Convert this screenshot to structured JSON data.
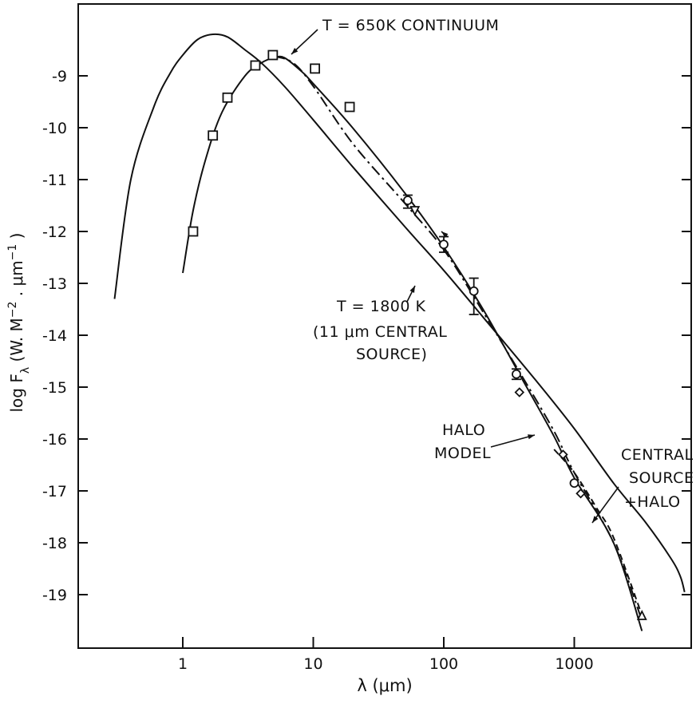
{
  "chart_data": {
    "type": "line",
    "xlabel": "λ (μm)",
    "ylabel": "log  F_λ (W. M⁻² . μm⁻¹ )",
    "xscale": "log",
    "xlim": [
      0.2,
      8000
    ],
    "ylim": [
      -20.0,
      -8.0
    ],
    "x_ticks": [
      1,
      10,
      100,
      1000
    ],
    "x_tick_labels": [
      "1",
      "10",
      "100",
      "1000"
    ],
    "y_ticks": [
      -9,
      -10,
      -11,
      -12,
      -13,
      -14,
      -15,
      -16,
      -17,
      -18,
      -19
    ],
    "y_tick_labels": [
      "-9",
      "-10",
      "-11",
      "-12",
      "-13",
      "-14",
      "-15",
      "-16",
      "-17",
      "-18",
      "-19"
    ],
    "grid": false,
    "series": [
      {
        "style": "solid",
        "points": [
          [
            0.3,
            -13.3
          ],
          [
            0.4,
            -11.0
          ],
          [
            0.6,
            -9.6
          ],
          [
            0.8,
            -8.95
          ],
          [
            1.0,
            -8.6
          ],
          [
            1.3,
            -8.3
          ],
          [
            1.7,
            -8.2
          ],
          [
            2.2,
            -8.25
          ],
          [
            3,
            -8.5
          ],
          [
            4,
            -8.75
          ],
          [
            6,
            -9.2
          ],
          [
            10,
            -9.85
          ],
          [
            20,
            -10.75
          ],
          [
            50,
            -11.9
          ],
          [
            100,
            -12.75
          ],
          [
            200,
            -13.65
          ],
          [
            500,
            -14.85
          ],
          [
            1000,
            -15.8
          ],
          [
            2000,
            -16.85
          ],
          [
            3500,
            -17.6
          ],
          [
            5500,
            -18.3
          ],
          [
            6500,
            -18.65
          ],
          [
            7000,
            -18.95
          ]
        ]
      },
      {
        "style": "solid",
        "points": [
          [
            1.0,
            -12.8
          ],
          [
            1.2,
            -11.6
          ],
          [
            1.5,
            -10.6
          ],
          [
            2,
            -9.7
          ],
          [
            3,
            -9.0
          ],
          [
            4,
            -8.75
          ],
          [
            5,
            -8.65
          ],
          [
            6,
            -8.65
          ],
          [
            8,
            -8.9
          ],
          [
            10,
            -9.15
          ],
          [
            20,
            -10.0
          ],
          [
            50,
            -11.25
          ],
          [
            100,
            -12.3
          ],
          [
            200,
            -13.5
          ],
          [
            400,
            -14.85
          ],
          [
            700,
            -15.95
          ],
          [
            1000,
            -16.75
          ],
          [
            2000,
            -18.0
          ],
          [
            3300,
            -19.7
          ]
        ]
      },
      {
        "style": "dash-dot",
        "points": [
          [
            5,
            -8.62
          ],
          [
            7,
            -8.75
          ],
          [
            10,
            -9.2
          ],
          [
            20,
            -10.3
          ],
          [
            50,
            -11.45
          ],
          [
            100,
            -12.35
          ],
          [
            200,
            -13.55
          ],
          [
            400,
            -14.8
          ],
          [
            700,
            -15.85
          ],
          [
            1000,
            -16.65
          ],
          [
            2000,
            -18.0
          ],
          [
            3200,
            -19.4
          ]
        ]
      },
      {
        "style": "dashed",
        "points": [
          [
            700,
            -16.2
          ],
          [
            1000,
            -16.65
          ],
          [
            1500,
            -17.35
          ],
          [
            2000,
            -17.9
          ],
          [
            3200,
            -19.3
          ]
        ]
      }
    ],
    "markers": [
      {
        "shape": "square",
        "points": [
          [
            1.2,
            -12.0
          ],
          [
            1.7,
            -10.15
          ],
          [
            2.2,
            -9.42
          ],
          [
            3.6,
            -8.8
          ],
          [
            4.9,
            -8.6
          ],
          [
            10.3,
            -8.86
          ],
          [
            19,
            -9.6
          ]
        ]
      },
      {
        "shape": "circle",
        "points": [
          [
            53,
            -11.4
          ],
          [
            100,
            -12.25
          ],
          [
            170,
            -13.15
          ],
          [
            360,
            -14.75
          ],
          [
            1000,
            -16.85
          ]
        ]
      },
      {
        "shape": "triangle-down",
        "points": [
          [
            60,
            -11.6
          ]
        ]
      },
      {
        "shape": "diamond",
        "points": [
          [
            380,
            -15.1
          ],
          [
            820,
            -16.3
          ],
          [
            1120,
            -17.05
          ]
        ]
      },
      {
        "shape": "triangle-up",
        "points": [
          [
            3300,
            -19.4
          ]
        ]
      }
    ],
    "error_bars": [
      {
        "x": 53,
        "low": -11.55,
        "high": -11.3
      },
      {
        "x": 100,
        "low": -12.4,
        "high": -12.1
      },
      {
        "x": 170,
        "low": -13.6,
        "high": -12.9
      },
      {
        "x": 360,
        "low": -14.85,
        "high": -14.65
      }
    ],
    "annotations": [
      {
        "lines": [
          "T = 650K  CONTINUUM"
        ]
      },
      {
        "lines": [
          "T = 1800  K",
          "(11 μm  CENTRAL",
          "SOURCE)"
        ]
      },
      {
        "lines": [
          "HALO",
          "MODEL"
        ]
      },
      {
        "lines": [
          "CENTRAL",
          "SOURCE",
          "+HALO"
        ]
      }
    ]
  }
}
